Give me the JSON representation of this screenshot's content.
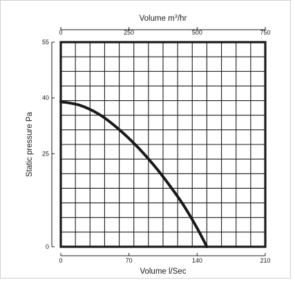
{
  "chart_data": {
    "type": "line",
    "title": "",
    "x_top_label": "Volume m",
    "x_top_label_sup": "3",
    "x_top_label_suffix": "/hr",
    "xlabel": "Volume l/Sec",
    "ylabel": "Static pressure Pa",
    "x_top_ticks": [
      "0",
      "250",
      "500",
      "750"
    ],
    "x_top_range": [
      0,
      750
    ],
    "x_bottom_ticks": [
      "0",
      "70",
      "140",
      "210"
    ],
    "xlim": [
      0,
      210
    ],
    "y_ticks": [
      "0",
      "25",
      "40",
      "55"
    ],
    "ylim": [
      0,
      55
    ],
    "grid": true,
    "line_color": "#1a1a1a",
    "series": [
      {
        "x": [
          0,
          20,
          40,
          60,
          80,
          100,
          120,
          130,
          140,
          150
        ],
        "y": [
          39,
          38,
          35.5,
          31.5,
          26.5,
          20.5,
          13.5,
          9.5,
          5,
          0
        ]
      }
    ]
  }
}
